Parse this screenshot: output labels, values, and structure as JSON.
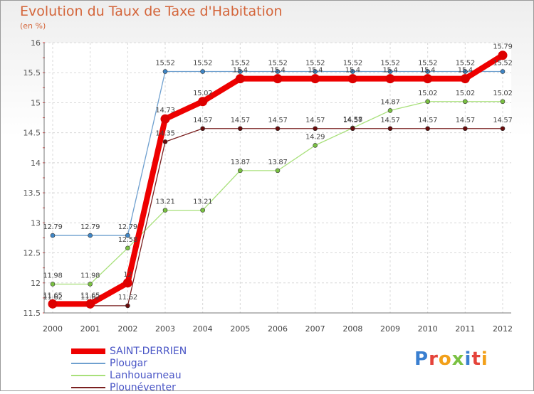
{
  "title": "Evolution du Taux de Taxe d'Habitation",
  "subtitle": "(en %)",
  "logo": {
    "text": "Proxiti",
    "colors": [
      "#3a7fd0",
      "#e5433a",
      "#f2a019",
      "#7ac142",
      "#3a7fd0",
      "#e5433a",
      "#f2a019"
    ]
  },
  "chart_data": {
    "type": "line",
    "title": "Evolution du Taux de Taxe d'Habitation",
    "ylabel": "(en %)",
    "xlabel": "",
    "categories": [
      "2000",
      "2001",
      "2002",
      "2003",
      "2004",
      "2005",
      "2006",
      "2007",
      "2008",
      "2009",
      "2010",
      "2011",
      "2012"
    ],
    "ylim": [
      11.5,
      16
    ],
    "yticks": [
      "11.5",
      "12",
      "12.5",
      "13",
      "13.5",
      "14",
      "14.5",
      "15",
      "15.5",
      "16"
    ],
    "grid": true,
    "legend_position": "bottom-left",
    "series": [
      {
        "name": "SAINT-DERRIEN",
        "color": "#ee0000",
        "marker": "#dd0000",
        "values": [
          11.65,
          11.65,
          12,
          14.73,
          15.02,
          15.4,
          15.4,
          15.4,
          15.4,
          15.4,
          15.4,
          15.4,
          15.79
        ],
        "labels": [
          "11.65",
          "11.65",
          "12",
          "14.73",
          "15.02",
          "15.4",
          "15.4",
          "15.4",
          "15.4",
          "15.4",
          "15.4",
          "15.4",
          "15.79"
        ]
      },
      {
        "name": "Plougar",
        "color": "#6fa0cf",
        "marker": "#3f86c6",
        "values": [
          12.79,
          12.79,
          12.79,
          15.52,
          15.52,
          15.52,
          15.52,
          15.52,
          15.52,
          15.52,
          15.52,
          15.52,
          15.52
        ],
        "labels": [
          "12.79",
          "12.79",
          "12.79",
          "15.52",
          "15.52",
          "15.52",
          "15.52",
          "15.52",
          "15.52",
          "15.52",
          "15.52",
          "15.52",
          "15.52"
        ]
      },
      {
        "name": "Lanhouarneau",
        "color": "#a8e07a",
        "marker": "#7ac142",
        "values": [
          11.98,
          11.98,
          12.58,
          13.21,
          13.21,
          13.87,
          13.87,
          14.29,
          14.58,
          14.87,
          15.02,
          15.02,
          15.02
        ],
        "labels": [
          "11.98",
          "11.98",
          "12.58",
          "13.21",
          "13.21",
          "13.87",
          "13.87",
          "14.29",
          "14.58",
          "14.87",
          "15.02",
          "15.02",
          "15.02"
        ]
      },
      {
        "name": "Plounéventer",
        "color": "#7a2020",
        "marker": "#6a0c0c",
        "values": [
          11.62,
          11.62,
          11.62,
          14.35,
          14.57,
          14.57,
          14.57,
          14.57,
          14.57,
          14.57,
          14.57,
          14.57,
          14.57
        ],
        "labels": [
          "11.62",
          "11.62",
          "11.62",
          "14.35",
          "14.57",
          "14.57",
          "14.57",
          "14.57",
          "14.57",
          "14.57",
          "14.57",
          "14.57",
          "14.57"
        ]
      }
    ]
  }
}
